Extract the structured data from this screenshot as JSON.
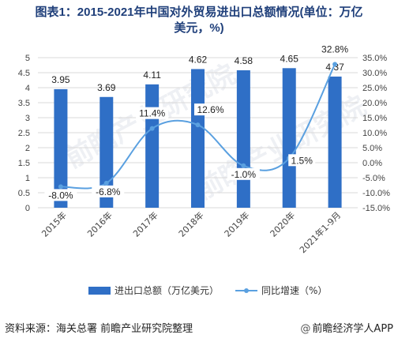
{
  "title_line1": "图表1：2015-2021年中国对外贸易进出口总额情况(单位：万亿",
  "title_line2": "美元，%)",
  "source": "资料来源：海关总署 前瞻产业研究院整理",
  "app_credit": "前瞻经济学人APP",
  "watermark": "前瞻产业研究院",
  "colors": {
    "bar": "#2f6fc6",
    "line": "#5aa0e0",
    "grid": "#d9d9d9",
    "title": "#1f3f7a"
  },
  "chart_data": {
    "type": "bar",
    "categories": [
      "2015年",
      "2016年",
      "2017年",
      "2018年",
      "2019年",
      "2020年",
      "2021年1-9月"
    ],
    "series": [
      {
        "name": "进出口总额（万亿美元）",
        "type": "bar",
        "axis": "left",
        "values": [
          3.95,
          3.69,
          4.11,
          4.62,
          4.58,
          4.65,
          4.37
        ],
        "labels": [
          "3.95",
          "3.69",
          "4.11",
          "4.62",
          "4.58",
          "4.65",
          "4.37"
        ]
      },
      {
        "name": "同比增速（%）",
        "type": "line",
        "axis": "right",
        "values": [
          -8.0,
          -6.8,
          11.4,
          12.6,
          -1.0,
          1.5,
          32.8
        ],
        "labels": [
          "-8.0%",
          "-6.8%",
          "11.4%",
          "12.6%",
          "-1.0%",
          "1.5%",
          "32.8%"
        ]
      }
    ],
    "ylim_left": [
      0,
      5
    ],
    "yticks_left": [
      "0",
      "0.5",
      "1",
      "1.5",
      "2",
      "2.5",
      "3",
      "3.5",
      "4",
      "4.5",
      "5"
    ],
    "ylim_right": [
      -15,
      35
    ],
    "yticks_right": [
      "-15.0%",
      "-10.0%",
      "-5.0%",
      "0.0%",
      "5.0%",
      "10.0%",
      "15.0%",
      "20.0%",
      "25.0%",
      "30.0%",
      "35.0%"
    ],
    "grid": true,
    "legend": "bottom"
  }
}
